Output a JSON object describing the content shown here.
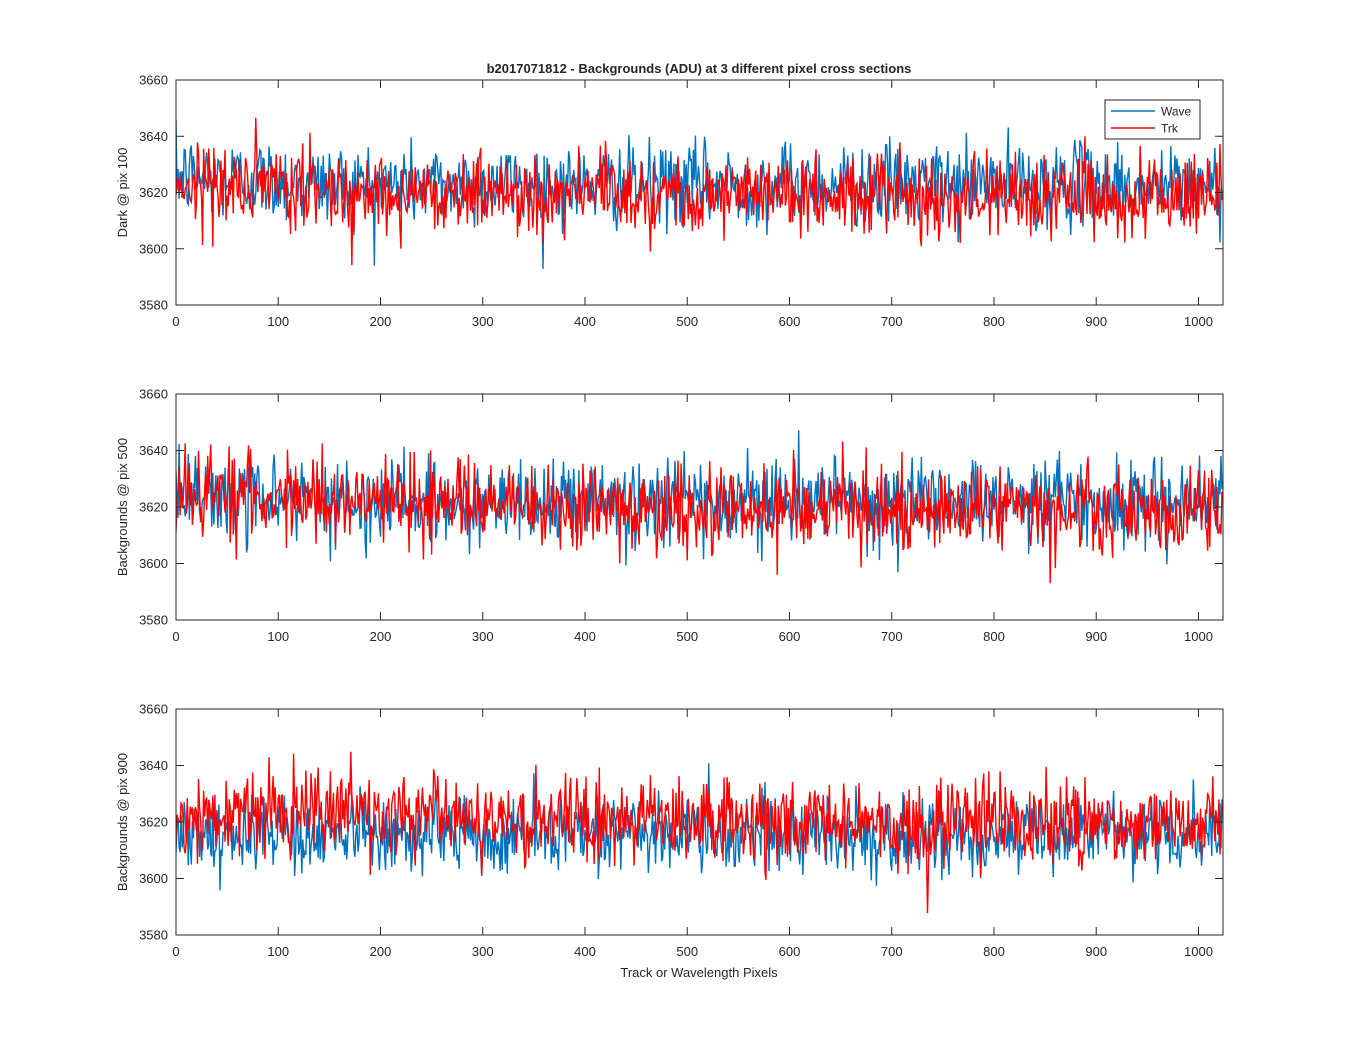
{
  "figure": {
    "title": "b2017071812 - Backgrounds (ADU) at 3 different pixel cross sections",
    "xlabel": "Track or Wavelength Pixels"
  },
  "colors": {
    "wave": "#0072BD",
    "trk": "#FF0000",
    "axes": "#262626",
    "background": "#FFFFFF"
  },
  "legend": {
    "placement": "top-right of first subplot",
    "entries": [
      "Wave",
      "Trk"
    ]
  },
  "chart_data": [
    {
      "type": "line",
      "ylabel": "Dark @ pix 100",
      "xlim": [
        0,
        1024
      ],
      "ylim": [
        3580,
        3660
      ],
      "xticks": [
        0,
        100,
        200,
        300,
        400,
        500,
        600,
        700,
        800,
        900,
        1000
      ],
      "yticks": [
        3580,
        3600,
        3620,
        3640,
        3660
      ],
      "grid": false,
      "series": [
        {
          "name": "Wave",
          "color": "#0072BD",
          "mean": 3623.5,
          "noise": 7.2,
          "x": [
            0,
            100,
            200,
            300,
            400,
            500,
            600,
            700,
            800,
            900,
            1000,
            1023
          ],
          "y": [
            3626,
            3624,
            3623,
            3623,
            3623,
            3623,
            3623,
            3623,
            3623,
            3623,
            3622,
            3622
          ]
        },
        {
          "name": "Trk",
          "color": "#FF0000",
          "mean": 3619.5,
          "noise": 7.2,
          "x": [
            0,
            100,
            200,
            300,
            400,
            500,
            600,
            700,
            800,
            900,
            1000,
            1023
          ],
          "y": [
            3624,
            3621,
            3620,
            3620,
            3620,
            3620,
            3619,
            3619,
            3619,
            3619,
            3618,
            3618
          ]
        }
      ]
    },
    {
      "type": "line",
      "ylabel": "Backgrounds @ pix 500",
      "xlim": [
        0,
        1024
      ],
      "ylim": [
        3580,
        3660
      ],
      "xticks": [
        0,
        100,
        200,
        300,
        400,
        500,
        600,
        700,
        800,
        900,
        1000
      ],
      "yticks": [
        3580,
        3600,
        3620,
        3640,
        3660
      ],
      "grid": false,
      "series": [
        {
          "name": "Wave",
          "color": "#0072BD",
          "mean": 3622,
          "noise": 7.5,
          "x": [
            0,
            100,
            200,
            300,
            400,
            500,
            600,
            700,
            800,
            900,
            1000,
            1023
          ],
          "y": [
            3625,
            3622,
            3622,
            3622,
            3622,
            3622,
            3622,
            3622,
            3622,
            3622,
            3622,
            3624
          ]
        },
        {
          "name": "Trk",
          "color": "#FF0000",
          "mean": 3620,
          "noise": 7.5,
          "x": [
            0,
            100,
            200,
            300,
            400,
            500,
            600,
            700,
            800,
            900,
            1000,
            1023
          ],
          "y": [
            3626,
            3624,
            3622,
            3621,
            3620,
            3620,
            3620,
            3620,
            3619,
            3618,
            3618,
            3618
          ]
        }
      ]
    },
    {
      "type": "line",
      "ylabel": "Backgrounds @ pix 900",
      "xlim": [
        0,
        1024
      ],
      "ylim": [
        3580,
        3660
      ],
      "xticks": [
        0,
        100,
        200,
        300,
        400,
        500,
        600,
        700,
        800,
        900,
        1000
      ],
      "yticks": [
        3580,
        3600,
        3620,
        3640,
        3660
      ],
      "grid": false,
      "series": [
        {
          "name": "Wave",
          "color": "#0072BD",
          "mean": 3616,
          "noise": 7.0,
          "x": [
            0,
            100,
            200,
            300,
            400,
            500,
            600,
            700,
            800,
            900,
            1000,
            1023
          ],
          "y": [
            3617,
            3616,
            3616,
            3616,
            3616,
            3616,
            3616,
            3616,
            3616,
            3616,
            3616,
            3616
          ]
        },
        {
          "name": "Trk",
          "color": "#FF0000",
          "mean": 3621,
          "noise": 7.5,
          "x": [
            0,
            100,
            200,
            300,
            400,
            500,
            600,
            700,
            800,
            900,
            1000,
            1023
          ],
          "y": [
            3622,
            3624,
            3622,
            3622,
            3621,
            3621,
            3620,
            3620,
            3620,
            3619,
            3618,
            3618
          ]
        }
      ]
    }
  ]
}
